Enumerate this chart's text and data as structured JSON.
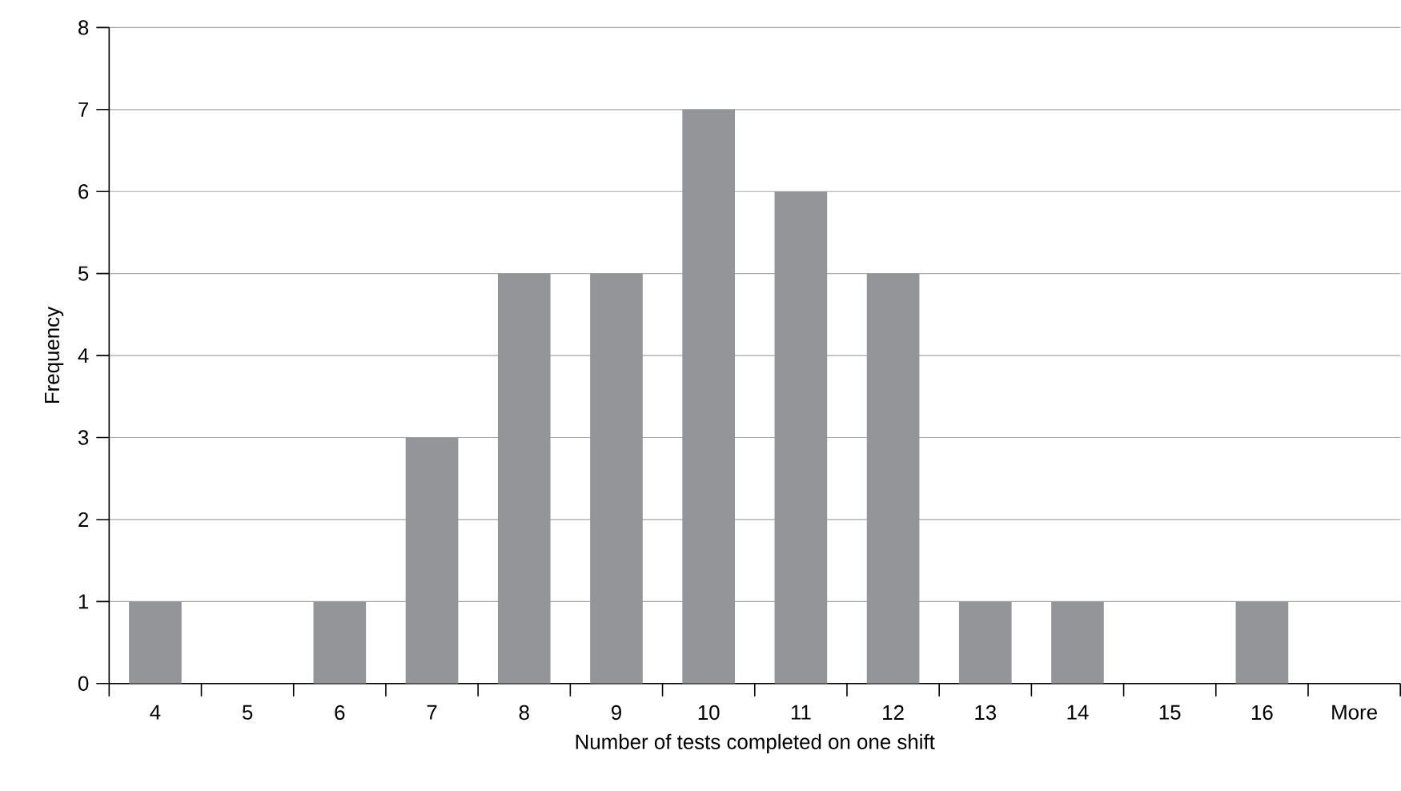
{
  "chart_data": {
    "type": "bar",
    "xlabel": "Number of tests completed on one shift",
    "ylabel": "Frequency",
    "categories": [
      "4",
      "5",
      "6",
      "7",
      "8",
      "9",
      "10",
      "11",
      "12",
      "13",
      "14",
      "15",
      "16",
      "More"
    ],
    "values": [
      1,
      0,
      1,
      3,
      5,
      5,
      7,
      6,
      5,
      1,
      1,
      0,
      1,
      0
    ],
    "color": "#939598",
    "ylim": [
      0,
      8
    ],
    "yticks": [
      0,
      1,
      2,
      3,
      4,
      5,
      6,
      7,
      8
    ],
    "grid": "y"
  }
}
